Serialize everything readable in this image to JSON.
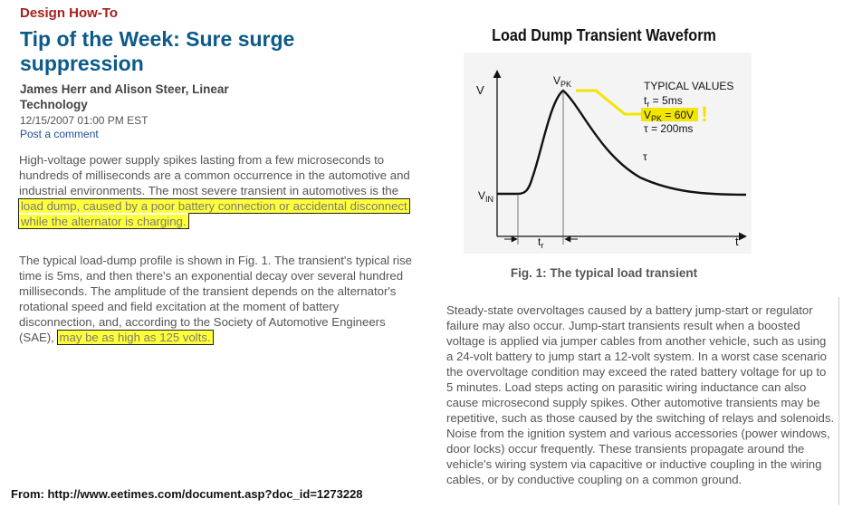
{
  "article": {
    "section": "Design How-To",
    "title": "Tip of the Week: Sure surge suppression",
    "authors": "James Herr and Alison Steer, Linear Technology",
    "date": "12/15/2007 01:00 PM EST",
    "comment_link": "Post a comment",
    "p1_text": "High-voltage power supply spikes lasting from a few microseconds to hundreds of milliseconds are a common occurrence in the automotive and industrial environments. The most severe transient in automotives is the ",
    "p1_highlight": "load dump, caused by a poor battery connection or accidental disconnect while the alternator is charging.",
    "p2_text": "The typical load-dump profile is shown in Fig. 1. The transient's typical rise time is 5ms, and then there's an exponential decay over several hundred milliseconds. The amplitude of the transient depends on the alternator's rotational speed and field excitation at the moment of battery disconnection, and, according to the Society of Automotive Engineers (SAE), ",
    "p2_highlight": "may be as high as 125 volts.",
    "p3_text": "Steady-state overvoltages caused by a battery jump-start or regulator failure may also occur. Jump-start transients result when a boosted voltage is applied via jumper cables from another vehicle, such as using a 24-volt battery to jump start a 12-volt system. In a worst case scenario the overvoltage condition may exceed the rated battery voltage for up to 5 minutes. Load steps acting on parasitic wiring inductance can also cause microsecond supply spikes. Other automotive transients may be repetitive, such as those caused by the switching of relays and solenoids. Noise from the ignition system and various accessories (power windows, door locks) occur frequently. These transients propagate around the vehicle's wiring system via capacitive or inductive coupling in the wiring cables, or by conductive coupling on a common ground."
  },
  "figure": {
    "title": "Load Dump Transient Waveform",
    "caption": "Fig. 1: The typical load transient",
    "y_axis": "V",
    "x_axis": "t",
    "vin": "V",
    "vin_sub": "IN",
    "vpk": "V",
    "vpk_sub": "PK",
    "tr": "t",
    "tr_sub": "r",
    "tau": "τ",
    "typical_heading": "TYPICAL VALUES",
    "typ_tr": "t",
    "typ_tr_sub": "r",
    "typ_tr_val": " = 5ms",
    "typ_vpk": "V",
    "typ_vpk_sub": "PK",
    "typ_vpk_val": " = 60V",
    "typ_tau": "τ = 200ms",
    "exclaim": "!",
    "colors": {
      "highlight": "#ffff3a",
      "callout": "#f2e600"
    }
  },
  "source": "From:  http://www.eetimes.com/document.asp?doc_id=1273228"
}
